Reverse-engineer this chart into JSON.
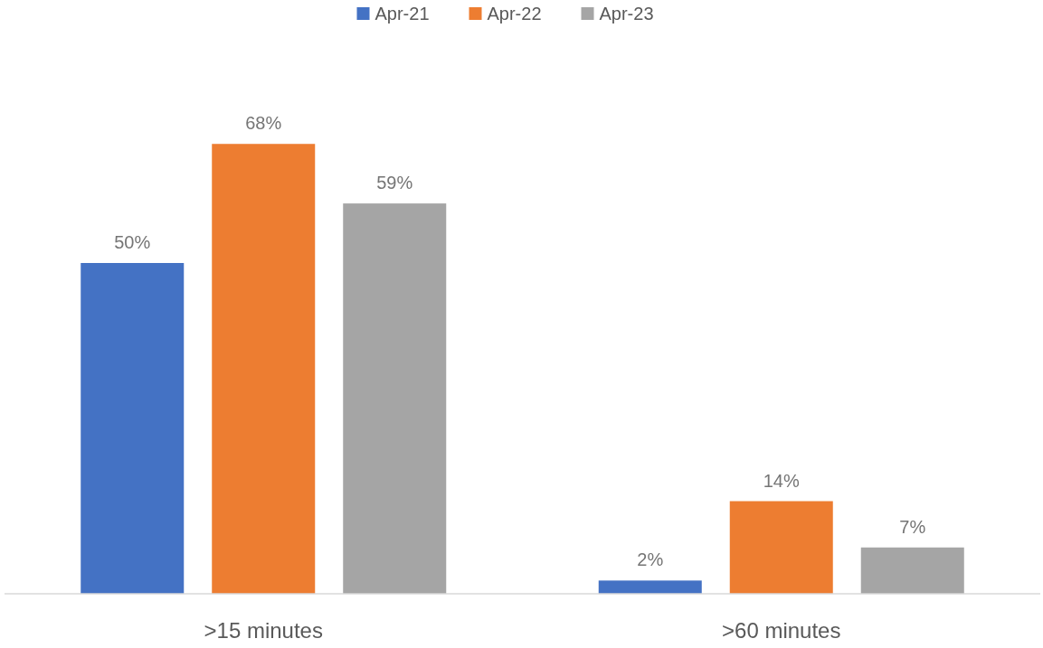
{
  "chart_data": {
    "type": "bar",
    "categories": [
      ">15 minutes",
      ">60 minutes"
    ],
    "series": [
      {
        "name": "Apr-21",
        "color": "#4472c4",
        "values": [
          50,
          2
        ],
        "value_labels": [
          "50%",
          "2%"
        ]
      },
      {
        "name": "Apr-22",
        "color": "#ed7d31",
        "values": [
          68,
          14
        ],
        "value_labels": [
          "68%",
          "14%"
        ]
      },
      {
        "name": "Apr-23",
        "color": "#a5a5a5",
        "values": [
          59,
          7
        ],
        "value_labels": [
          "59%",
          "7%"
        ]
      }
    ],
    "legend": "top"
  }
}
